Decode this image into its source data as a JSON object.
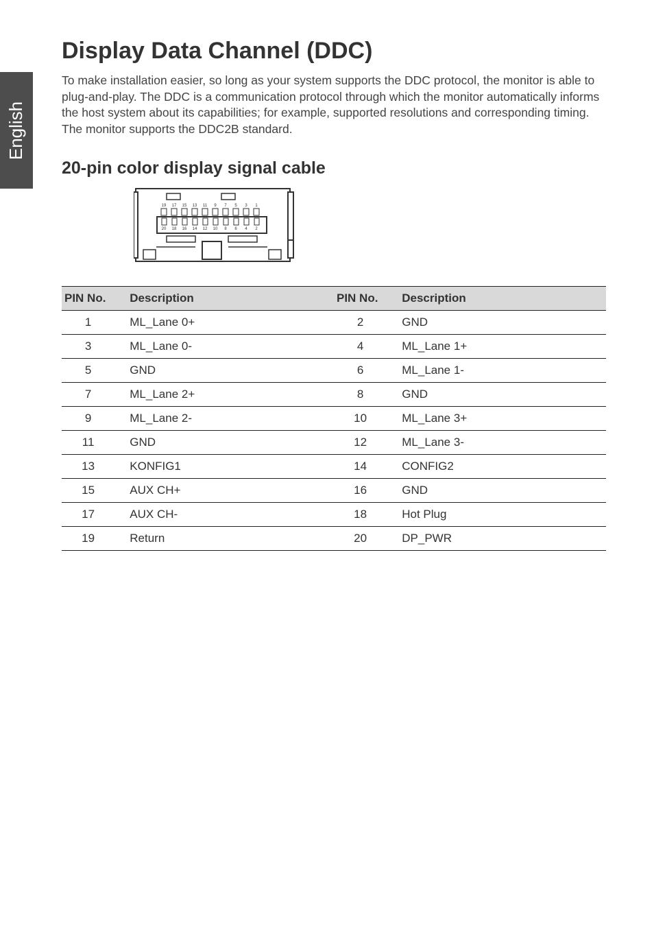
{
  "side_tab": "English",
  "heading": "Display Data Channel (DDC)",
  "intro": "To make installation easier, so long as your system supports the DDC protocol, the monitor is able to plug-and-play. The DDC is a communication protocol through which the monitor automatically informs the host system about its capabilities; for example, supported resolutions and corresponding timing. The monitor supports the DDC2B standard.",
  "subheading": "20-pin color display signal cable",
  "connector": {
    "top_numbers": [
      "19",
      "17",
      "15",
      "13",
      "11",
      "9",
      "7",
      "5",
      "3",
      "1"
    ],
    "bottom_numbers": [
      "20",
      "18",
      "16",
      "14",
      "12",
      "10",
      "8",
      "6",
      "4",
      "2"
    ]
  },
  "table": {
    "columns": [
      "PIN No.",
      "Description",
      "PIN No.",
      "Description"
    ],
    "column_widths_pct": [
      12,
      38,
      12,
      38
    ],
    "header_bg": "#d9d9d9",
    "border_color": "#222222",
    "rows": [
      [
        "1",
        "ML_Lane 0+",
        "2",
        "GND"
      ],
      [
        "3",
        "ML_Lane 0-",
        "4",
        "ML_Lane 1+"
      ],
      [
        "5",
        "GND",
        "6",
        "ML_Lane 1-"
      ],
      [
        "7",
        "ML_Lane 2+",
        "8",
        "GND"
      ],
      [
        "9",
        "ML_Lane 2-",
        "10",
        "ML_Lane 3+"
      ],
      [
        "11",
        "GND",
        "12",
        "ML_Lane 3-"
      ],
      [
        "13",
        "KONFIG1",
        "14",
        "CONFIG2"
      ],
      [
        "15",
        "AUX CH+",
        "16",
        "GND"
      ],
      [
        "17",
        "AUX CH-",
        "18",
        "Hot Plug"
      ],
      [
        "19",
        "Return",
        "20",
        "DP_PWR"
      ]
    ]
  },
  "typography": {
    "h1_fontsize": 34,
    "h2_fontsize": 25,
    "body_fontsize": 17.5,
    "table_fontsize": 17,
    "side_tab_fontsize": 26
  },
  "colors": {
    "background": "#ffffff",
    "side_tab_bg": "#4d4d4d",
    "side_tab_text": "#ffffff",
    "text": "#333333",
    "intro_text": "#444444"
  }
}
